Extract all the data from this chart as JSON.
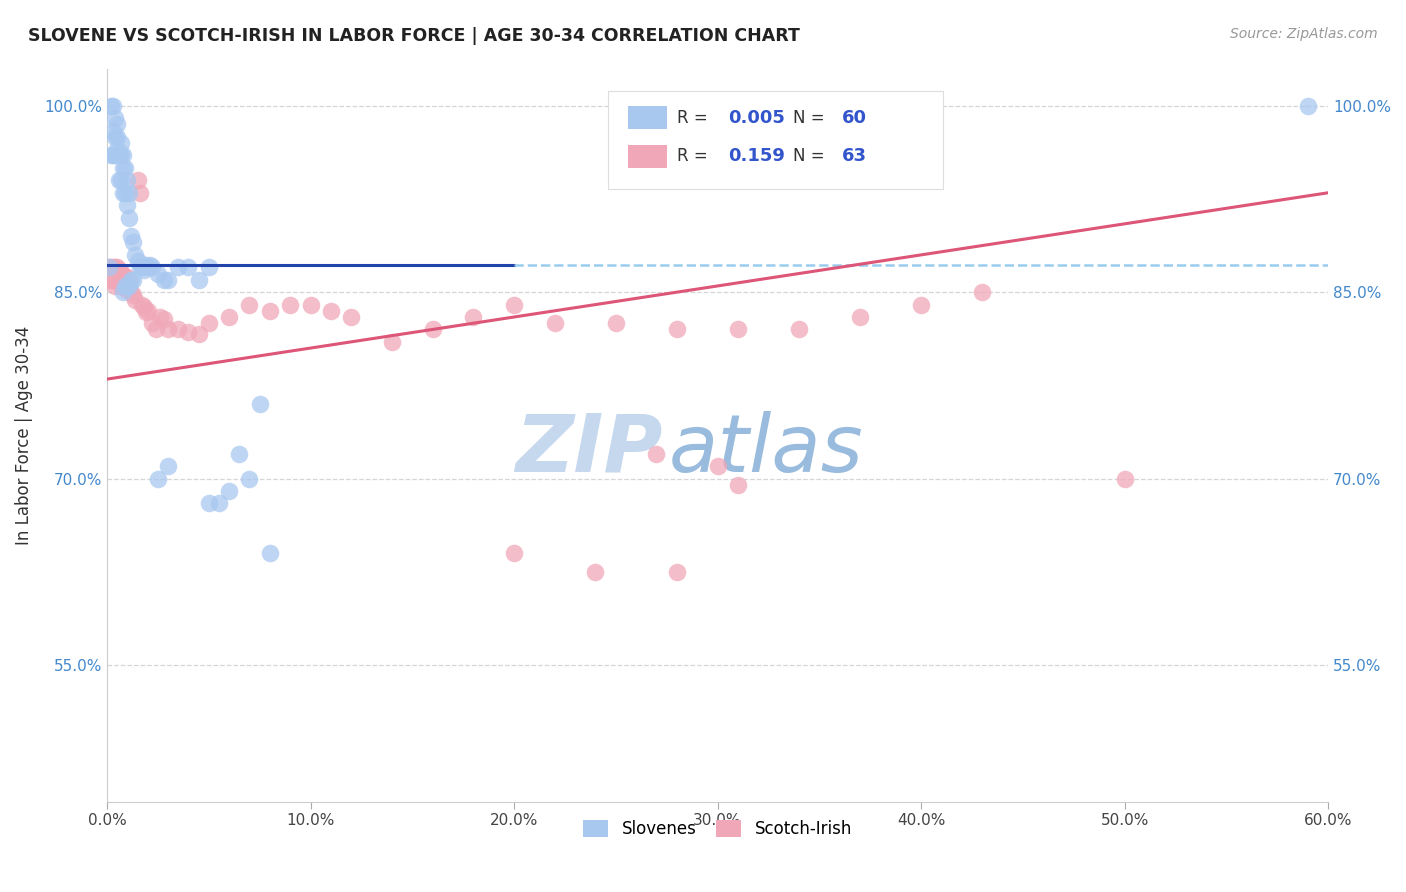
{
  "title": "SLOVENE VS SCOTCH-IRISH IN LABOR FORCE | AGE 30-34 CORRELATION CHART",
  "source": "Source: ZipAtlas.com",
  "ylabel": "In Labor Force | Age 30-34",
  "xlim": [
    0.0,
    0.6
  ],
  "ylim": [
    0.44,
    1.03
  ],
  "xtick_labels": [
    "0.0%",
    "",
    "",
    "",
    "",
    "",
    "",
    "",
    "",
    "",
    "10.0%",
    "",
    "",
    "",
    "",
    "",
    "",
    "",
    "",
    "",
    "20.0%",
    "",
    "",
    "",
    "",
    "",
    "",
    "",
    "",
    "",
    "30.0%",
    "",
    "",
    "",
    "",
    "",
    "",
    "",
    "",
    "",
    "40.0%",
    "",
    "",
    "",
    "",
    "",
    "",
    "",
    "",
    "",
    "50.0%",
    "",
    "",
    "",
    "",
    "",
    "",
    "",
    "",
    "",
    "60.0%"
  ],
  "xtick_vals": [
    0.0,
    0.01,
    0.02,
    0.03,
    0.04,
    0.05,
    0.06,
    0.07,
    0.08,
    0.09,
    0.1,
    0.11,
    0.12,
    0.13,
    0.14,
    0.15,
    0.16,
    0.17,
    0.18,
    0.19,
    0.2,
    0.21,
    0.22,
    0.23,
    0.24,
    0.25,
    0.26,
    0.27,
    0.28,
    0.29,
    0.3,
    0.31,
    0.32,
    0.33,
    0.34,
    0.35,
    0.36,
    0.37,
    0.38,
    0.39,
    0.4,
    0.41,
    0.42,
    0.43,
    0.44,
    0.45,
    0.46,
    0.47,
    0.48,
    0.49,
    0.5,
    0.51,
    0.52,
    0.53,
    0.54,
    0.55,
    0.56,
    0.57,
    0.58,
    0.59,
    0.6
  ],
  "xtick_major": [
    0.0,
    0.1,
    0.2,
    0.3,
    0.4,
    0.5,
    0.6
  ],
  "xtick_major_labels": [
    "0.0%",
    "10.0%",
    "20.0%",
    "30.0%",
    "40.0%",
    "50.0%",
    "60.0%"
  ],
  "ytick_labels": [
    "55.0%",
    "70.0%",
    "85.0%",
    "100.0%"
  ],
  "ytick_vals": [
    0.55,
    0.7,
    0.85,
    1.0
  ],
  "grid_color": "#cccccc",
  "background_color": "#ffffff",
  "slovene_color": "#a8c8f0",
  "scotch_color": "#f0a8b8",
  "slovene_line_color": "#2244aa",
  "scotch_line_color": "#dd5577",
  "dashed_line_color": "#99ccee",
  "legend_R_slovene": "0.005",
  "legend_N_slovene": "60",
  "legend_R_scotch": "0.159",
  "legend_N_scotch": "63",
  "watermark_zip": "ZIP",
  "watermark_atlas": "atlas",
  "watermark_color_zip": "#c5d8ee",
  "watermark_color_atlas": "#99bbdd",
  "slovene_x": [
    0.001,
    0.002,
    0.002,
    0.003,
    0.003,
    0.003,
    0.004,
    0.004,
    0.004,
    0.005,
    0.005,
    0.005,
    0.006,
    0.006,
    0.007,
    0.007,
    0.007,
    0.008,
    0.008,
    0.008,
    0.009,
    0.009,
    0.01,
    0.01,
    0.011,
    0.011,
    0.012,
    0.013,
    0.014,
    0.015,
    0.016,
    0.017,
    0.018,
    0.019,
    0.02,
    0.021,
    0.022,
    0.025,
    0.028,
    0.03,
    0.035,
    0.04,
    0.045,
    0.05,
    0.055,
    0.06,
    0.065,
    0.07,
    0.075,
    0.08,
    0.008,
    0.009,
    0.01,
    0.011,
    0.012,
    0.013,
    0.025,
    0.03,
    0.05,
    0.59
  ],
  "slovene_y": [
    0.87,
    0.96,
    1.0,
    0.96,
    0.98,
    1.0,
    0.96,
    0.975,
    0.99,
    0.965,
    0.975,
    0.985,
    0.94,
    0.96,
    0.94,
    0.96,
    0.97,
    0.93,
    0.95,
    0.96,
    0.93,
    0.95,
    0.92,
    0.94,
    0.91,
    0.93,
    0.895,
    0.89,
    0.88,
    0.875,
    0.87,
    0.87,
    0.868,
    0.872,
    0.87,
    0.872,
    0.87,
    0.865,
    0.86,
    0.86,
    0.87,
    0.87,
    0.86,
    0.87,
    0.68,
    0.69,
    0.72,
    0.7,
    0.76,
    0.64,
    0.85,
    0.855,
    0.855,
    0.855,
    0.86,
    0.86,
    0.7,
    0.71,
    0.68,
    1.0
  ],
  "scotch_x": [
    0.001,
    0.002,
    0.002,
    0.003,
    0.003,
    0.004,
    0.004,
    0.005,
    0.005,
    0.006,
    0.006,
    0.007,
    0.007,
    0.008,
    0.008,
    0.009,
    0.01,
    0.01,
    0.011,
    0.012,
    0.013,
    0.014,
    0.015,
    0.016,
    0.017,
    0.018,
    0.019,
    0.02,
    0.022,
    0.024,
    0.026,
    0.028,
    0.03,
    0.035,
    0.04,
    0.045,
    0.05,
    0.06,
    0.07,
    0.08,
    0.09,
    0.1,
    0.11,
    0.12,
    0.14,
    0.16,
    0.18,
    0.2,
    0.22,
    0.25,
    0.28,
    0.31,
    0.34,
    0.37,
    0.4,
    0.3,
    0.31,
    0.43,
    0.5,
    0.27,
    0.2,
    0.24,
    0.28
  ],
  "scotch_y": [
    0.87,
    0.86,
    0.87,
    0.86,
    0.87,
    0.855,
    0.87,
    0.86,
    0.87,
    0.858,
    0.868,
    0.855,
    0.866,
    0.854,
    0.864,
    0.855,
    0.852,
    0.862,
    0.858,
    0.85,
    0.848,
    0.844,
    0.94,
    0.93,
    0.84,
    0.838,
    0.834,
    0.835,
    0.825,
    0.82,
    0.83,
    0.828,
    0.82,
    0.82,
    0.818,
    0.816,
    0.825,
    0.83,
    0.84,
    0.835,
    0.84,
    0.84,
    0.835,
    0.83,
    0.81,
    0.82,
    0.83,
    0.84,
    0.825,
    0.825,
    0.82,
    0.82,
    0.82,
    0.83,
    0.84,
    0.71,
    0.695,
    0.85,
    0.7,
    0.72,
    0.64,
    0.625,
    0.625
  ],
  "slovene_trend_x": [
    0.0,
    0.2
  ],
  "slovene_trend_y": [
    0.872,
    0.872
  ],
  "dashed_line_x": [
    0.2,
    0.6
  ],
  "dashed_line_y": [
    0.872,
    0.872
  ],
  "scotch_trend_x": [
    0.0,
    0.6
  ],
  "scotch_trend_y": [
    0.78,
    0.93
  ]
}
